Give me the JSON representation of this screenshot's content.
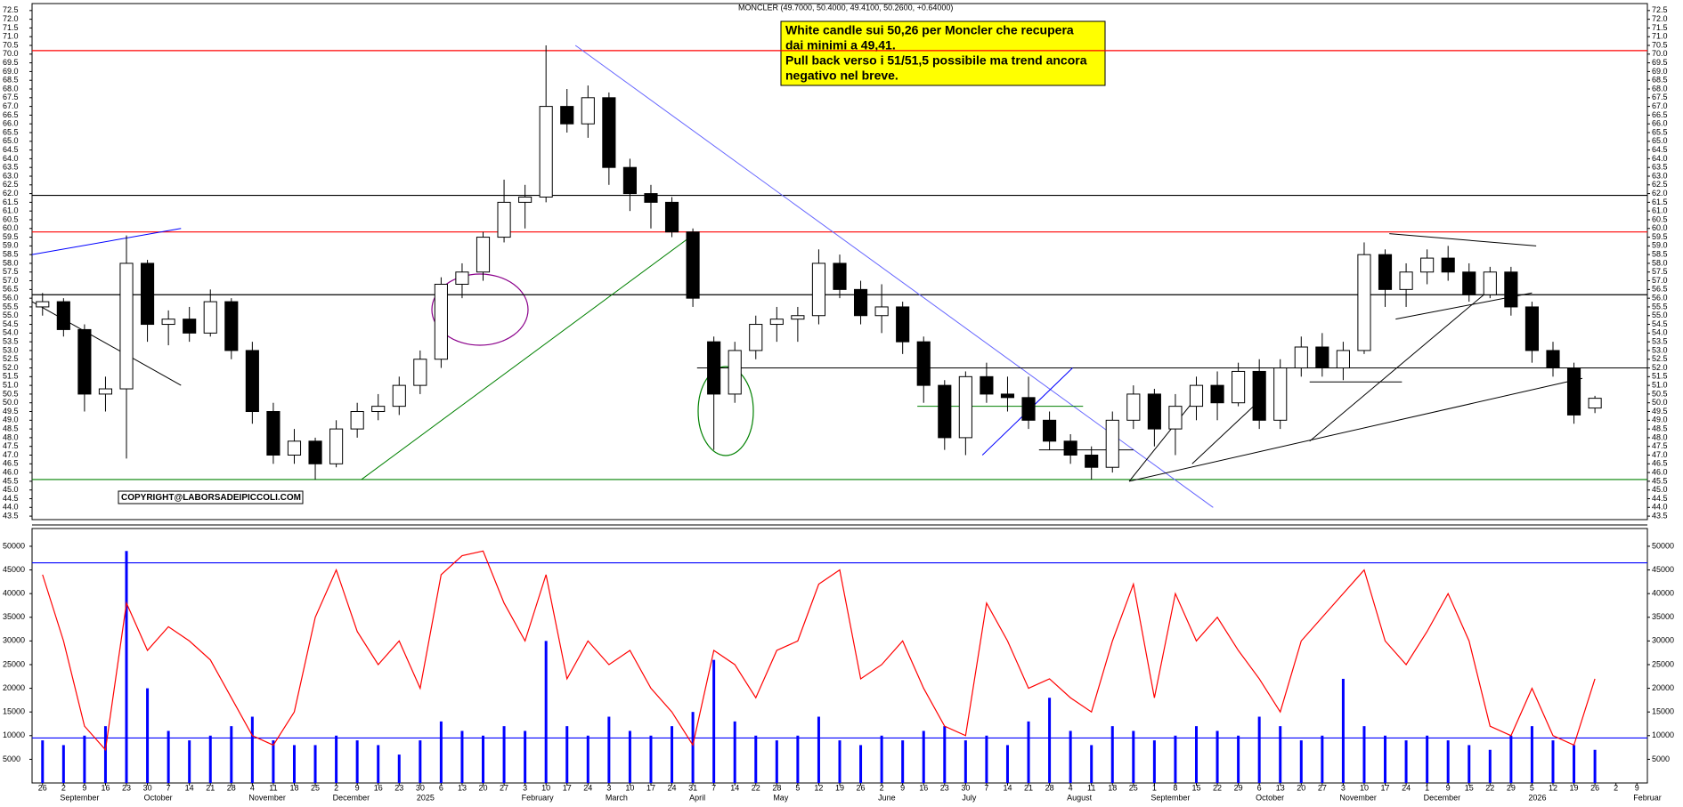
{
  "chart_data": [
    {
      "type": "candlestick",
      "title": "MONCLER (49.7000, 50.4000, 49.4100, 50.2600, +0.64000)",
      "annotation": [
        "White candle sui 50,26 per Moncler che recupera",
        "dai minimi a 49,41.",
        "Pull back verso i 51/51,5 possibile ma trend ancora",
        "negativo nel breve."
      ],
      "copyright": "COPYRIGHT@LABORSADEIPICCOLI.COM",
      "open": [
        55.5,
        55.8,
        54.2,
        50.5,
        50.8,
        58.0,
        54.5,
        54.8,
        54.0,
        55.8,
        53.0,
        49.5,
        47.0,
        47.8,
        46.5,
        48.5,
        49.5,
        49.8,
        51.0,
        52.5,
        56.8,
        57.5,
        59.5,
        61.5,
        61.8,
        67.0,
        66.0,
        67.5,
        63.5,
        62.0,
        61.5,
        59.8,
        53.5,
        50.5,
        53.0,
        54.5,
        54.8,
        55.0,
        58.0,
        56.5,
        55.0,
        55.5,
        53.5,
        51.0,
        48.0,
        51.5,
        50.5,
        50.3,
        49.0,
        47.8,
        47.0,
        46.3,
        49.0,
        50.5,
        48.5,
        49.8,
        51.0,
        50.0,
        51.8,
        49.0,
        52.0,
        53.2,
        52.0,
        53.0,
        58.5,
        56.5,
        57.5,
        58.3,
        57.5,
        56.2,
        57.5,
        55.5,
        53.0,
        52.0,
        49.7,
        null,
        null
      ],
      "high": [
        56.3,
        56.0,
        54.5,
        51.5,
        59.6,
        58.2,
        55.3,
        55.5,
        56.5,
        56.0,
        53.5,
        50.0,
        48.5,
        48.0,
        49.0,
        50.0,
        50.5,
        51.5,
        53.0,
        57.2,
        58.0,
        59.8,
        62.8,
        62.5,
        70.5,
        68.0,
        68.2,
        67.8,
        64.0,
        62.5,
        61.8,
        60.0,
        53.8,
        53.5,
        55.0,
        55.5,
        55.5,
        58.8,
        58.5,
        57.0,
        56.8,
        55.8,
        53.8,
        51.3,
        51.8,
        52.3,
        51.5,
        51.5,
        49.5,
        48.2,
        47.5,
        49.5,
        51.0,
        50.8,
        50.5,
        51.5,
        51.8,
        52.3,
        52.5,
        52.5,
        53.8,
        54.0,
        53.5,
        59.2,
        58.8,
        58.0,
        58.8,
        59.0,
        58.0,
        57.8,
        57.8,
        55.8,
        53.5,
        52.3,
        50.4,
        null,
        null
      ],
      "low": [
        55.0,
        53.8,
        49.5,
        49.5,
        46.8,
        53.5,
        53.3,
        53.5,
        53.8,
        52.5,
        48.8,
        46.5,
        46.5,
        45.6,
        46.3,
        48.0,
        49.0,
        49.3,
        50.5,
        52.0,
        56.0,
        57.0,
        59.2,
        60.0,
        61.5,
        65.5,
        65.2,
        62.5,
        61.0,
        60.0,
        59.5,
        55.5,
        47.3,
        50.0,
        52.5,
        53.5,
        53.5,
        54.5,
        56.0,
        54.5,
        54.0,
        52.8,
        50.0,
        47.3,
        47.0,
        50.0,
        49.5,
        48.5,
        47.3,
        46.5,
        45.6,
        46.0,
        48.5,
        47.5,
        47.0,
        49.0,
        49.0,
        49.8,
        48.5,
        48.5,
        51.5,
        51.5,
        51.3,
        52.8,
        55.5,
        55.5,
        56.8,
        57.0,
        55.8,
        56.0,
        55.0,
        52.3,
        51.5,
        48.8,
        49.41,
        null,
        null
      ],
      "close": [
        55.8,
        54.2,
        50.5,
        50.8,
        58.0,
        54.5,
        54.8,
        54.0,
        55.8,
        53.0,
        49.5,
        47.0,
        47.8,
        46.5,
        48.5,
        49.5,
        49.8,
        51.0,
        52.5,
        56.8,
        57.5,
        59.5,
        61.5,
        61.8,
        67.0,
        66.0,
        67.5,
        63.5,
        62.0,
        61.5,
        59.8,
        56.0,
        50.5,
        53.0,
        54.5,
        54.8,
        55.0,
        58.0,
        56.5,
        55.0,
        55.5,
        53.5,
        51.0,
        48.0,
        51.5,
        50.5,
        50.3,
        49.0,
        47.8,
        47.0,
        46.3,
        49.0,
        50.5,
        48.5,
        49.8,
        51.0,
        50.0,
        51.8,
        49.0,
        52.0,
        53.2,
        52.0,
        53.0,
        58.5,
        56.5,
        57.5,
        58.3,
        57.5,
        56.2,
        57.5,
        55.5,
        53.0,
        52.0,
        49.3,
        50.26,
        null,
        null
      ],
      "ylim": [
        43.3,
        72.9
      ],
      "yticks": [
        43.5,
        {
          "value": 44,
          "label": "44.0"
        },
        44.5,
        {
          "value": 45,
          "label": "45.0"
        },
        45.5,
        {
          "value": 46,
          "label": "46.0"
        },
        46.5,
        {
          "value": 47,
          "label": "47.0"
        },
        47.5,
        {
          "value": 48,
          "label": "48.0"
        },
        48.5,
        {
          "value": 49,
          "label": "49.0"
        },
        49.5,
        {
          "value": 50,
          "label": "50.0"
        },
        50.5,
        {
          "value": 51,
          "label": "51.0"
        },
        51.5,
        {
          "value": 52,
          "label": "52.0"
        },
        52.5,
        {
          "value": 53,
          "label": "53.0"
        },
        53.5,
        {
          "value": 54,
          "label": "54.0"
        },
        54.5,
        {
          "value": 55,
          "label": "55.0"
        },
        55.5,
        {
          "value": 56,
          "label": "56.0"
        },
        56.5,
        {
          "value": 57,
          "label": "57.0"
        },
        57.5,
        {
          "value": 58,
          "label": "58.0"
        },
        58.5,
        {
          "value": 59,
          "label": "59.0"
        },
        59.5,
        {
          "value": 60,
          "label": "60.0"
        },
        60.5,
        {
          "value": 61,
          "label": "61.0"
        },
        61.5,
        {
          "value": 62,
          "label": "62.0"
        },
        62.5,
        {
          "value": 63,
          "label": "63.0"
        },
        63.5,
        {
          "value": 64,
          "label": "64.0"
        },
        64.5,
        {
          "value": 65,
          "label": "65.0"
        },
        65.5,
        {
          "value": 66,
          "label": "66.0"
        },
        66.5,
        {
          "value": 67,
          "label": "67.0"
        },
        67.5,
        {
          "value": 68,
          "label": "68.0"
        },
        68.5,
        {
          "value": 69,
          "label": "69.0"
        },
        69.5,
        {
          "value": 70,
          "label": "70.0"
        },
        70.5,
        {
          "value": 71,
          "label": "71.0"
        },
        71.5,
        {
          "value": 72,
          "label": "72.0"
        },
        72.5
      ],
      "hlines": [
        {
          "value": 70.2,
          "color": "#ff0000"
        },
        {
          "value": 61.9,
          "color": "#000000"
        },
        {
          "value": 59.8,
          "color": "#ff0000"
        },
        {
          "value": 56.2,
          "color": "#000000"
        },
        {
          "value": 45.6,
          "color": "#008000"
        }
      ],
      "trendlines": [
        {
          "x": [
            -0.5,
            6.6
          ],
          "y": [
            58.5,
            60.0
          ],
          "color": "#0000ff"
        },
        {
          "x": [
            -0.5,
            6.6
          ],
          "y": [
            55.8,
            51.0
          ],
          "color": "#000000"
        },
        {
          "x": [
            15.2,
            31.2
          ],
          "y": [
            45.6,
            59.8
          ],
          "color": "#008000"
        },
        {
          "x": [
            25.4,
            55.8
          ],
          "y": [
            70.5,
            44.0
          ],
          "color": "#6666ff"
        },
        {
          "x": [
            31.2,
            76.5
          ],
          "y": [
            52.0,
            52.0
          ],
          "color": "#000000"
        },
        {
          "x": [
            51.8,
            73.4
          ],
          "y": [
            45.5,
            51.4
          ],
          "color": "#000000"
        },
        {
          "x": [
            60.4,
            69.0
          ],
          "y": [
            47.8,
            56.5
          ],
          "color": "#000000"
        },
        {
          "x": [
            64.5,
            71.0
          ],
          "y": [
            54.8,
            56.3
          ],
          "color": "#000000"
        },
        {
          "x": [
            64.2,
            71.2
          ],
          "y": [
            59.7,
            59.0
          ],
          "color": "#000000"
        },
        {
          "x": [
            44.8,
            49.1
          ],
          "y": [
            47.0,
            52.0
          ],
          "color": "#0000ff"
        },
        {
          "x": [
            41.7,
            49.6
          ],
          "y": [
            49.8,
            49.8
          ],
          "color": "#008000"
        },
        {
          "x": [
            47.5,
            52.0
          ],
          "y": [
            47.3,
            47.3
          ],
          "color": "#000000"
        },
        {
          "x": [
            60.4,
            64.8
          ],
          "y": [
            51.2,
            51.2
          ],
          "color": "#000000"
        },
        {
          "x": [
            51.8,
            54.8
          ],
          "y": [
            45.5,
            50.0
          ],
          "color": "#000000"
        },
        {
          "x": [
            54.8,
            57.9
          ],
          "y": [
            46.5,
            50.0
          ],
          "color": "#000000"
        }
      ]
    },
    {
      "type": "bar",
      "categories": [
        "26",
        "2",
        "9",
        "16",
        "23",
        "30",
        "7",
        "14",
        "21",
        "28",
        "4",
        "11",
        "18",
        "25",
        "2",
        "9",
        "16",
        "23",
        "30",
        "6",
        "13",
        "20",
        "27",
        "3",
        "10",
        "17",
        "24",
        "3",
        "10",
        "17",
        "24",
        "31",
        "7",
        "14",
        "22",
        "28",
        "5",
        "12",
        "19",
        "26",
        "2",
        "9",
        "16",
        "23",
        "30",
        "7",
        "14",
        "21",
        "28",
        "4",
        "11",
        "18",
        "25",
        "1",
        "8",
        "15",
        "22",
        "29",
        "6",
        "13",
        "20",
        "27",
        "3",
        "10",
        "17",
        "24",
        "1",
        "9",
        "15",
        "22",
        "29",
        "5",
        "12",
        "19",
        "26",
        "2",
        "9"
      ],
      "month_labels": [
        null,
        "September",
        null,
        null,
        null,
        "October",
        null,
        null,
        null,
        null,
        "November",
        null,
        null,
        null,
        "December",
        null,
        null,
        null,
        "2025",
        null,
        null,
        null,
        null,
        "February",
        null,
        null,
        null,
        "March",
        null,
        null,
        null,
        "April",
        null,
        null,
        null,
        "May",
        null,
        null,
        null,
        null,
        "June",
        null,
        null,
        null,
        "July",
        null,
        null,
        null,
        null,
        "August",
        null,
        null,
        null,
        "September",
        null,
        null,
        null,
        null,
        "October",
        null,
        null,
        null,
        "November",
        null,
        null,
        null,
        "December",
        null,
        null,
        null,
        null,
        "2026",
        null,
        null,
        null,
        null,
        "Februar"
      ],
      "series": [
        {
          "type": "bar",
          "color": "#0000ff",
          "values": [
            9000,
            8000,
            10000,
            12000,
            49000,
            20000,
            11000,
            9000,
            10000,
            12000,
            14000,
            9000,
            8000,
            8000,
            10000,
            9000,
            8000,
            6000,
            9000,
            13000,
            11000,
            10000,
            12000,
            11000,
            30000,
            12000,
            10000,
            14000,
            11000,
            10000,
            12000,
            15000,
            26000,
            13000,
            10000,
            9000,
            10000,
            14000,
            9000,
            8000,
            10000,
            9000,
            11000,
            12000,
            9000,
            10000,
            8000,
            13000,
            18000,
            11000,
            8000,
            12000,
            11000,
            9000,
            10000,
            12000,
            11000,
            10000,
            14000,
            12000,
            9000,
            10000,
            22000,
            12000,
            10000,
            9000,
            10000,
            9000,
            8000,
            7000,
            10000,
            12000,
            9000,
            8000,
            7000,
            null,
            null
          ]
        },
        {
          "type": "line",
          "color": "#ff0000",
          "values": [
            44000,
            30000,
            12000,
            7000,
            38000,
            28000,
            33000,
            30000,
            26000,
            18000,
            10000,
            8000,
            15000,
            35000,
            45000,
            32000,
            25000,
            30000,
            20000,
            44000,
            48000,
            49000,
            38000,
            30000,
            44000,
            22000,
            30000,
            25000,
            28000,
            20000,
            15000,
            8000,
            28000,
            25000,
            18000,
            28000,
            30000,
            42000,
            45000,
            22000,
            25000,
            30000,
            20000,
            12000,
            10000,
            38000,
            30000,
            20000,
            22000,
            18000,
            15000,
            30000,
            42000,
            18000,
            40000,
            30000,
            35000,
            28000,
            22000,
            15000,
            30000,
            35000,
            40000,
            45000,
            30000,
            25000,
            32000,
            40000,
            30000,
            12000,
            10000,
            20000,
            10000,
            8000,
            22000,
            null,
            null
          ]
        }
      ],
      "ylim": [
        0,
        53750
      ],
      "yticks": [
        5000,
        10000,
        15000,
        20000,
        25000,
        30000,
        35000,
        40000,
        45000,
        50000
      ],
      "hlines": [
        {
          "value": 46500,
          "color": "#0000ff"
        },
        {
          "value": 9500,
          "color": "#0000ff"
        }
      ]
    }
  ]
}
